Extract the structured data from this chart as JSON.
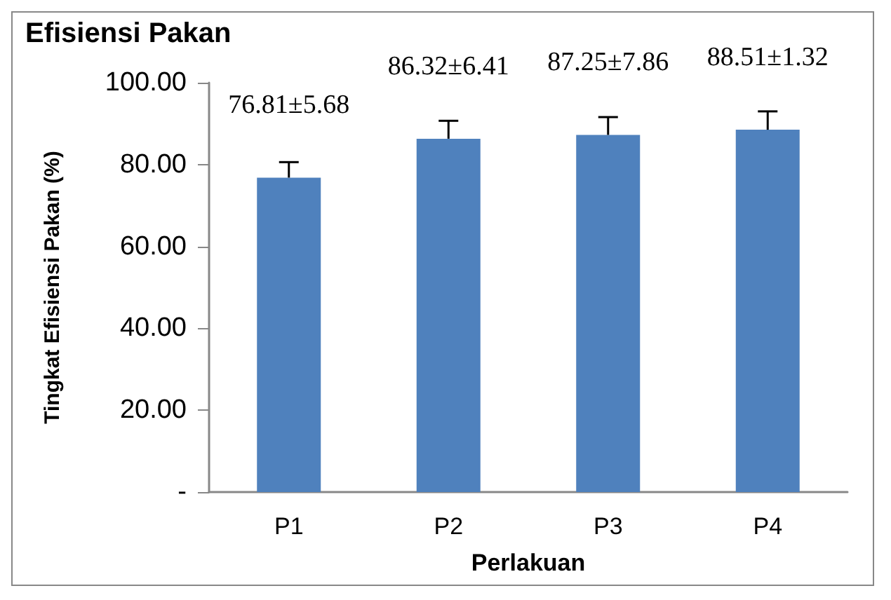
{
  "chart_data": {
    "type": "bar",
    "title": "Efisiensi Pakan",
    "xlabel": "Perlakuan",
    "ylabel": "Tingkat Efisiensi Pakan (%)",
    "categories": [
      "P1",
      "P2",
      "P3",
      "P4"
    ],
    "values": [
      76.81,
      86.32,
      87.25,
      88.51
    ],
    "color": "#4f81bd",
    "errors": [
      [
        76.81,
        80.6
      ],
      [
        86.32,
        90.7
      ],
      [
        87.25,
        91.6
      ],
      [
        88.51,
        93.0
      ]
    ],
    "value_labels": [
      "76.81±5.68",
      "86.32±6.41",
      "87.25±7.86",
      "88.51±1.32"
    ],
    "ylim": [
      0,
      100
    ],
    "yticks": [
      {
        "value": 0,
        "label": "-"
      },
      {
        "value": 20,
        "label": "20.00"
      },
      {
        "value": 40,
        "label": "40.00"
      },
      {
        "value": 60,
        "label": "60.00"
      },
      {
        "value": 80,
        "label": "80.00"
      },
      {
        "value": 100,
        "label": "100.00"
      }
    ],
    "grid": false
  }
}
